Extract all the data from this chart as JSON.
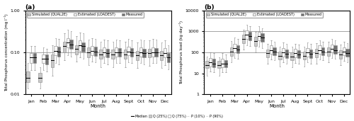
{
  "months": [
    "Jan",
    "Feb",
    "Mar",
    "Apr",
    "May",
    "Jun",
    "Jul",
    "Aug",
    "Sept",
    "Oct",
    "Nov",
    "Dec"
  ],
  "panel_a": {
    "title": "(a)",
    "ylabel": "Total Phosphorus concentration (mg l⁻¹)",
    "xlabel": "Month",
    "ylim_log": [
      0.01,
      1.0
    ],
    "hline": 0.1,
    "simulated": {
      "color": "#c8c8c8",
      "medians": [
        0.025,
        0.025,
        0.065,
        0.14,
        0.12,
        0.1,
        0.09,
        0.09,
        0.09,
        0.085,
        0.095,
        0.085
      ],
      "q25": [
        0.02,
        0.02,
        0.045,
        0.1,
        0.09,
        0.075,
        0.07,
        0.07,
        0.07,
        0.065,
        0.075,
        0.065
      ],
      "q75": [
        0.035,
        0.032,
        0.09,
        0.18,
        0.15,
        0.13,
        0.115,
        0.115,
        0.115,
        0.11,
        0.12,
        0.11
      ],
      "p10": [
        0.014,
        0.014,
        0.028,
        0.065,
        0.06,
        0.05,
        0.045,
        0.045,
        0.045,
        0.043,
        0.048,
        0.042
      ],
      "p90": [
        0.055,
        0.045,
        0.15,
        0.28,
        0.24,
        0.2,
        0.18,
        0.18,
        0.18,
        0.17,
        0.19,
        0.17
      ]
    },
    "estimated": {
      "color": "#f5f5f5",
      "medians": [
        0.075,
        0.07,
        0.11,
        0.17,
        0.15,
        0.11,
        0.1,
        0.1,
        0.105,
        0.1,
        0.1,
        0.095
      ],
      "q25": [
        0.055,
        0.055,
        0.085,
        0.13,
        0.11,
        0.085,
        0.08,
        0.08,
        0.085,
        0.08,
        0.08,
        0.075
      ],
      "q75": [
        0.095,
        0.09,
        0.14,
        0.22,
        0.19,
        0.14,
        0.13,
        0.13,
        0.135,
        0.13,
        0.13,
        0.125
      ],
      "p10": [
        0.038,
        0.038,
        0.055,
        0.085,
        0.075,
        0.06,
        0.055,
        0.055,
        0.058,
        0.055,
        0.055,
        0.05
      ],
      "p90": [
        0.14,
        0.13,
        0.22,
        0.35,
        0.3,
        0.22,
        0.2,
        0.2,
        0.21,
        0.2,
        0.21,
        0.19
      ]
    },
    "measured": {
      "color": "#707070",
      "medians": [
        0.075,
        0.07,
        0.105,
        0.155,
        0.14,
        0.105,
        0.095,
        0.1,
        0.1,
        0.095,
        0.1,
        0.075
      ],
      "q25": [
        0.055,
        0.052,
        0.08,
        0.12,
        0.105,
        0.082,
        0.075,
        0.078,
        0.078,
        0.075,
        0.08,
        0.058
      ],
      "q75": [
        0.095,
        0.088,
        0.135,
        0.2,
        0.175,
        0.135,
        0.12,
        0.125,
        0.125,
        0.12,
        0.125,
        0.095
      ],
      "p10": [
        0.038,
        0.035,
        0.052,
        0.08,
        0.07,
        0.058,
        0.052,
        0.055,
        0.055,
        0.052,
        0.055,
        0.04
      ],
      "p90": [
        0.14,
        0.12,
        0.21,
        0.32,
        0.28,
        0.21,
        0.19,
        0.195,
        0.195,
        0.19,
        0.2,
        0.15
      ]
    }
  },
  "panel_b": {
    "title": "(b)",
    "ylabel": "Total Phosphorus load (kg day⁻¹)",
    "xlabel": "Month",
    "ylim_log": [
      1.0,
      10000.0
    ],
    "hlines": [
      100,
      1000
    ],
    "simulated": {
      "color": "#c8c8c8",
      "medians": [
        25,
        25,
        110,
        450,
        350,
        90,
        70,
        65,
        70,
        95,
        110,
        80
      ],
      "q25": [
        18,
        18,
        70,
        280,
        200,
        60,
        45,
        42,
        45,
        60,
        70,
        50
      ],
      "q75": [
        38,
        38,
        175,
        700,
        550,
        140,
        110,
        100,
        110,
        150,
        175,
        130
      ],
      "p10": [
        8,
        8,
        35,
        140,
        100,
        28,
        22,
        20,
        22,
        28,
        35,
        24
      ],
      "p90": [
        65,
        60,
        350,
        1200,
        950,
        250,
        190,
        180,
        190,
        270,
        320,
        230
      ]
    },
    "estimated": {
      "color": "#f5f5f5",
      "medians": [
        35,
        30,
        160,
        700,
        600,
        130,
        100,
        90,
        100,
        130,
        150,
        110
      ],
      "q25": [
        22,
        20,
        100,
        420,
        360,
        85,
        65,
        58,
        65,
        85,
        100,
        72
      ],
      "q75": [
        55,
        48,
        260,
        1100,
        950,
        210,
        160,
        145,
        160,
        210,
        240,
        175
      ],
      "p10": [
        12,
        11,
        55,
        220,
        190,
        45,
        35,
        32,
        35,
        45,
        55,
        38
      ],
      "p90": [
        100,
        90,
        520,
        2000,
        1700,
        380,
        290,
        260,
        290,
        380,
        440,
        320
      ]
    },
    "measured": {
      "color": "#707070",
      "medians": [
        30,
        28,
        140,
        600,
        500,
        110,
        85,
        80,
        85,
        110,
        130,
        90
      ],
      "q25": [
        20,
        20,
        90,
        370,
        310,
        75,
        55,
        52,
        55,
        75,
        88,
        62
      ],
      "q75": [
        48,
        44,
        225,
        950,
        800,
        175,
        135,
        128,
        135,
        175,
        210,
        148
      ],
      "p10": [
        11,
        11,
        50,
        200,
        165,
        42,
        30,
        28,
        30,
        42,
        48,
        34
      ],
      "p90": [
        90,
        82,
        450,
        1700,
        1400,
        320,
        245,
        230,
        245,
        320,
        380,
        270
      ]
    }
  },
  "legend_items": [
    {
      "label": "Simulated (QUAL2E)",
      "color": "#c8c8c8",
      "edgecolor": "#888888"
    },
    {
      "label": "Estimated (LOADEST)",
      "color": "#f5f5f5",
      "edgecolor": "#888888"
    },
    {
      "label": "Measured",
      "color": "#707070",
      "edgecolor": "#888888"
    }
  ]
}
